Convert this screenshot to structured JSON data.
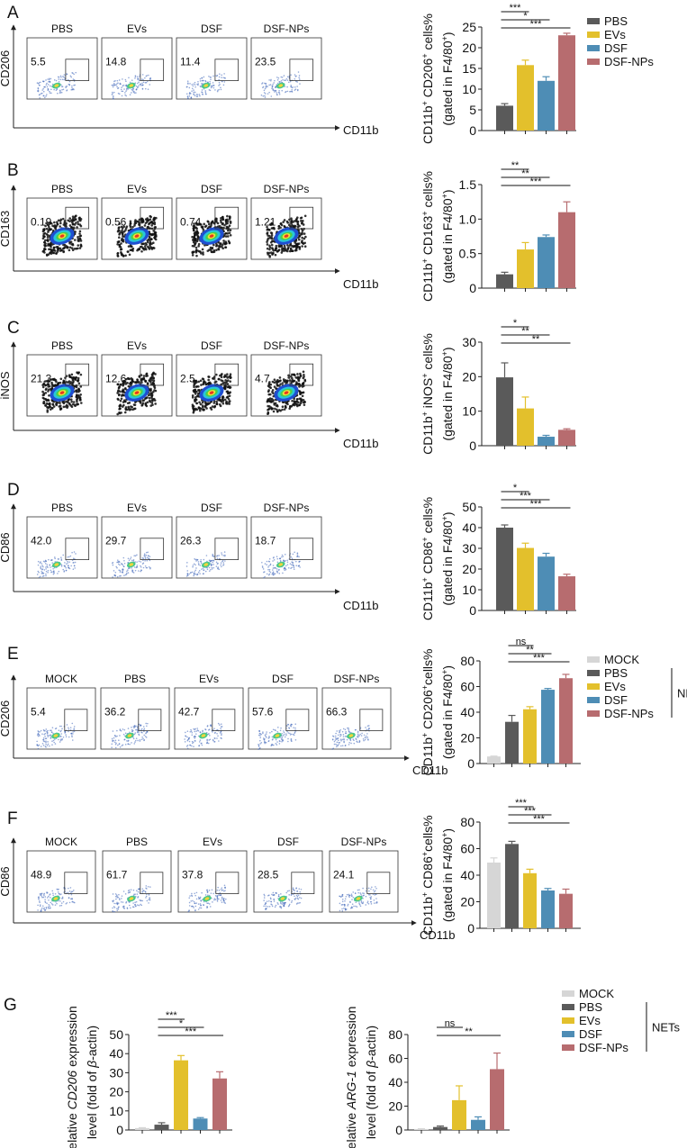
{
  "colors": {
    "MOCK": "#d6d6d6",
    "PBS": "#5a5a5a",
    "EVs": "#e3c02c",
    "DSF": "#4e8db5",
    "DSF-NPs": "#b76c6f"
  },
  "panels": [
    {
      "letter": "A",
      "marker": "CD206",
      "xaxis": "CD11b",
      "flow": [
        {
          "group": "PBS",
          "value": "5.5"
        },
        {
          "group": "EVs",
          "value": "14.8"
        },
        {
          "group": "DSF",
          "value": "11.4"
        },
        {
          "group": "DSF-NPs",
          "value": "23.5"
        }
      ]
    },
    {
      "letter": "B",
      "marker": "CD163",
      "xaxis": "CD11b",
      "flow": [
        {
          "group": "PBS",
          "value": "0.19"
        },
        {
          "group": "EVs",
          "value": "0.56"
        },
        {
          "group": "DSF",
          "value": "0.74"
        },
        {
          "group": "DSF-NPs",
          "value": "1.21"
        }
      ]
    },
    {
      "letter": "C",
      "marker": "iNOS",
      "xaxis": "CD11b",
      "flow": [
        {
          "group": "PBS",
          "value": "21.3"
        },
        {
          "group": "EVs",
          "value": "12.6"
        },
        {
          "group": "DSF",
          "value": "2.5"
        },
        {
          "group": "DSF-NPs",
          "value": "4.7"
        }
      ]
    },
    {
      "letter": "D",
      "marker": "CD86",
      "xaxis": "CD11b",
      "flow": [
        {
          "group": "PBS",
          "value": "42.0"
        },
        {
          "group": "EVs",
          "value": "29.7"
        },
        {
          "group": "DSF",
          "value": "26.3"
        },
        {
          "group": "DSF-NPs",
          "value": "18.7"
        }
      ]
    },
    {
      "letter": "E",
      "marker": "CD206",
      "xaxis": "CD11b",
      "flow": [
        {
          "group": "MOCK",
          "value": "5.4"
        },
        {
          "group": "PBS",
          "value": "36.2"
        },
        {
          "group": "EVs",
          "value": "42.7"
        },
        {
          "group": "DSF",
          "value": "57.6"
        },
        {
          "group": "DSF-NPs",
          "value": "66.3"
        }
      ]
    },
    {
      "letter": "F",
      "marker": "CD86",
      "xaxis": "CD11b",
      "flow": [
        {
          "group": "MOCK",
          "value": "48.9"
        },
        {
          "group": "PBS",
          "value": "61.7"
        },
        {
          "group": "EVs",
          "value": "37.8"
        },
        {
          "group": "DSF",
          "value": "28.5"
        },
        {
          "group": "DSF-NPs",
          "value": "24.1"
        }
      ]
    }
  ],
  "legend_top": [
    "PBS",
    "EVs",
    "DSF",
    "DSF-NPs"
  ],
  "legend_nets": {
    "items": [
      "MOCK",
      "PBS",
      "EVs",
      "DSF",
      "DSF-NPs"
    ],
    "bracket_label": "NETs"
  },
  "panel_G_letter": "G",
  "chart_data": [
    {
      "id": "A",
      "type": "bar",
      "ylabel_line1": [
        "CD11b",
        "+",
        " CD206",
        "+",
        " cells%"
      ],
      "ylabel_line2": [
        "(gated in F4/80",
        "+",
        ")"
      ],
      "categories": [
        "PBS",
        "EVs",
        "DSF",
        "DSF-NPs"
      ],
      "values": [
        6.0,
        15.8,
        12.0,
        23.0
      ],
      "errors": [
        0.5,
        1.2,
        1.0,
        0.5
      ],
      "ylim": [
        0,
        25
      ],
      "yticks": [
        "0",
        "5",
        "10",
        "15",
        "20",
        "25"
      ],
      "sig": [
        {
          "from": "PBS",
          "to": "EVs",
          "label": "***"
        },
        {
          "from": "PBS",
          "to": "DSF",
          "label": "*"
        },
        {
          "from": "PBS",
          "to": "DSF-NPs",
          "label": "***"
        }
      ]
    },
    {
      "id": "B",
      "type": "bar",
      "ylabel_line1": [
        "CD11b",
        "+",
        " CD163",
        "+",
        " cells%"
      ],
      "ylabel_line2": [
        "(gated in F4/80",
        "+",
        ")"
      ],
      "categories": [
        "PBS",
        "EVs",
        "DSF",
        "DSF-NPs"
      ],
      "values": [
        0.2,
        0.56,
        0.74,
        1.1
      ],
      "errors": [
        0.03,
        0.1,
        0.03,
        0.15
      ],
      "ylim": [
        0,
        1.5
      ],
      "yticks": [
        "0",
        "0.5",
        "1.0",
        "1.5"
      ],
      "sig": [
        {
          "from": "PBS",
          "to": "EVs",
          "label": "**"
        },
        {
          "from": "PBS",
          "to": "DSF",
          "label": "**"
        },
        {
          "from": "PBS",
          "to": "DSF-NPs",
          "label": "***"
        }
      ]
    },
    {
      "id": "C",
      "type": "bar",
      "ylabel_line1": [
        "CD11b",
        "+",
        " iNOS",
        "+",
        " cells%"
      ],
      "ylabel_line2": [
        "(gated in F4/80",
        "+",
        ")"
      ],
      "categories": [
        "PBS",
        "EVs",
        "DSF",
        "DSF-NPs"
      ],
      "values": [
        19.8,
        10.8,
        2.6,
        4.6
      ],
      "errors": [
        4.2,
        3.3,
        0.4,
        0.3
      ],
      "ylim": [
        0,
        30
      ],
      "yticks": [
        "0",
        "10",
        "20",
        "30"
      ],
      "sig": [
        {
          "from": "PBS",
          "to": "EVs",
          "label": "*"
        },
        {
          "from": "PBS",
          "to": "DSF",
          "label": "**"
        },
        {
          "from": "PBS",
          "to": "DSF-NPs",
          "label": "**"
        }
      ]
    },
    {
      "id": "D",
      "type": "bar",
      "ylabel_line1": [
        "CD11b",
        "+",
        " CD86",
        "+",
        " cells%"
      ],
      "ylabel_line2": [
        "(gated in F4/80",
        "+",
        ")"
      ],
      "categories": [
        "PBS",
        "EVs",
        "DSF",
        "DSF-NPs"
      ],
      "values": [
        40.0,
        30.2,
        26.0,
        16.5
      ],
      "errors": [
        1.3,
        2.3,
        1.6,
        1.0
      ],
      "ylim": [
        0,
        50
      ],
      "yticks": [
        "0",
        "10",
        "20",
        "30",
        "40",
        "50"
      ],
      "sig": [
        {
          "from": "PBS",
          "to": "EVs",
          "label": "*"
        },
        {
          "from": "PBS",
          "to": "DSF",
          "label": "***"
        },
        {
          "from": "PBS",
          "to": "DSF-NPs",
          "label": "***"
        }
      ]
    },
    {
      "id": "E",
      "type": "bar",
      "ylabel_line1": [
        "CD11b",
        "+",
        " CD206",
        "+",
        "cells%"
      ],
      "ylabel_line2": [
        "(gated in F4/80",
        "+",
        ")"
      ],
      "categories": [
        "MOCK",
        "PBS",
        "EVs",
        "DSF",
        "DSF-NPs"
      ],
      "values": [
        5.5,
        32.5,
        42.3,
        57.5,
        66.5
      ],
      "errors": [
        0.3,
        5.0,
        2.0,
        1.0,
        3.0
      ],
      "ylim": [
        0,
        80
      ],
      "yticks": [
        "0",
        "20",
        "40",
        "60",
        "80"
      ],
      "sig": [
        {
          "from": "PBS",
          "to": "EVs",
          "label": "ns"
        },
        {
          "from": "PBS",
          "to": "DSF",
          "label": "**"
        },
        {
          "from": "PBS",
          "to": "DSF-NPs",
          "label": "***"
        }
      ]
    },
    {
      "id": "F",
      "type": "bar",
      "ylabel_line1": [
        "CD11b",
        "+",
        " CD86",
        "+",
        "cells%"
      ],
      "ylabel_line2": [
        "(gated in F4/80",
        "+",
        ")"
      ],
      "categories": [
        "MOCK",
        "PBS",
        "EVs",
        "DSF",
        "DSF-NPs"
      ],
      "values": [
        49.5,
        63.5,
        41.5,
        28.5,
        26.0
      ],
      "errors": [
        3.5,
        2.0,
        3.0,
        1.5,
        3.5
      ],
      "ylim": [
        0,
        80
      ],
      "yticks": [
        "0",
        "20",
        "40",
        "60",
        "80"
      ],
      "sig": [
        {
          "from": "PBS",
          "to": "EVs",
          "label": "***"
        },
        {
          "from": "PBS",
          "to": "DSF",
          "label": "***"
        },
        {
          "from": "PBS",
          "to": "DSF-NPs",
          "label": "***"
        }
      ]
    },
    {
      "id": "G1",
      "type": "bar",
      "ylabel_line1": [
        "Relative ",
        "CD206",
        " expression"
      ],
      "ylabel_line2": [
        "level  (fold of ",
        "β",
        "-actin)"
      ],
      "categories": [
        "MOCK",
        "PBS",
        "EVs",
        "DSF",
        "DSF-NPs"
      ],
      "values": [
        1.0,
        2.8,
        36.5,
        6.0,
        27.0
      ],
      "errors": [
        0.2,
        1.0,
        2.5,
        0.5,
        3.5
      ],
      "ylim": [
        0,
        50
      ],
      "yticks": [
        "0",
        "10",
        "20",
        "30",
        "40",
        "50"
      ],
      "sig": [
        {
          "from": "PBS",
          "to": "EVs",
          "label": "***"
        },
        {
          "from": "PBS",
          "to": "DSF",
          "label": "*"
        },
        {
          "from": "PBS",
          "to": "DSF-NPs",
          "label": "***"
        }
      ]
    },
    {
      "id": "G2",
      "type": "bar",
      "ylabel_line1": [
        "Relative ",
        "ARG-1",
        " expression"
      ],
      "ylabel_line2": [
        "level  (fold of ",
        "β",
        "-actin)"
      ],
      "categories": [
        "MOCK",
        "PBS",
        "EVs",
        "DSF",
        "DSF-NPs"
      ],
      "values": [
        0.8,
        2.5,
        25.0,
        8.5,
        51.0
      ],
      "errors": [
        0.2,
        0.8,
        12.0,
        2.5,
        13.5
      ],
      "ylim": [
        0,
        80
      ],
      "yticks": [
        "0",
        "20",
        "40",
        "60",
        "80"
      ],
      "sig": [
        {
          "from": "PBS",
          "to": "EVs",
          "label": "ns"
        },
        {
          "from": "PBS",
          "to": "DSF-NPs",
          "label": "**"
        }
      ]
    }
  ]
}
